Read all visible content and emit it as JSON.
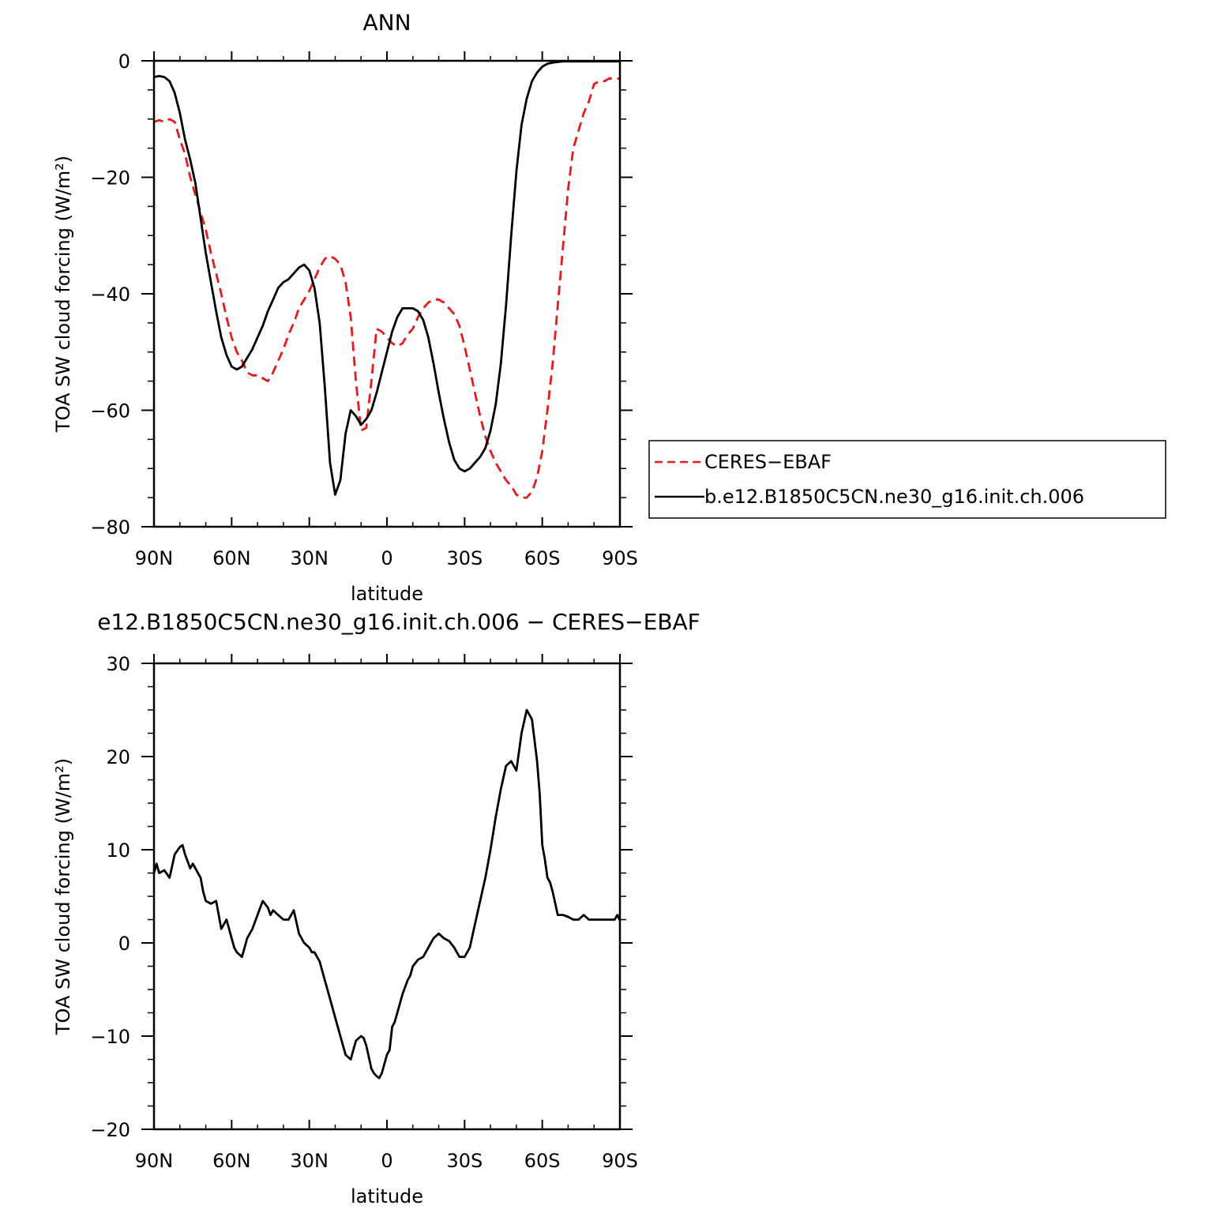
{
  "chart_data": [
    {
      "type": "line",
      "title": "ANN",
      "xlabel": "latitude",
      "ylabel": "TOA SW cloud forcing (W/m²)",
      "xlim": [
        90,
        -90
      ],
      "ylim": [
        -80,
        0
      ],
      "x_ticks": [
        90,
        60,
        30,
        0,
        -30,
        -60,
        -90
      ],
      "x_tick_labels": [
        "90N",
        "60N",
        "30N",
        "0",
        "30S",
        "60S",
        "90S"
      ],
      "y_ticks": [
        -80,
        -60,
        -40,
        -20,
        0
      ],
      "y_tick_labels": [
        "−80",
        "−60",
        "−40",
        "−20",
        "0"
      ],
      "legend": {
        "placement": "right",
        "entries": [
          {
            "label": "CERES−EBAF",
            "color": "#e41a1c",
            "style": "dashed"
          },
          {
            "label": "b.e12.B1850C5CN.ne30_g16.init.ch.006",
            "color": "#000000",
            "style": "solid"
          }
        ]
      },
      "series": [
        {
          "name": "CERES−EBAF",
          "color": "#e41a1c",
          "style": "dashed",
          "x": [
            90,
            88,
            86,
            84,
            82,
            80,
            78,
            76,
            74,
            72,
            70,
            68,
            66,
            64,
            62,
            60,
            58,
            56,
            54,
            52,
            50,
            48,
            46,
            44,
            42,
            40,
            38,
            36,
            34,
            32,
            30,
            28,
            26,
            24,
            22,
            20,
            18,
            16,
            14,
            12,
            10,
            8,
            6,
            4,
            2,
            0,
            -2,
            -4,
            -6,
            -8,
            -10,
            -12,
            -14,
            -16,
            -18,
            -20,
            -22,
            -24,
            -26,
            -28,
            -30,
            -32,
            -34,
            -36,
            -38,
            -40,
            -42,
            -44,
            -46,
            -48,
            -50,
            -52,
            -54,
            -56,
            -58,
            -60,
            -62,
            -64,
            -66,
            -68,
            -70,
            -72,
            -74,
            -76,
            -78,
            -80,
            -82,
            -84,
            -86,
            -88,
            -90
          ],
          "y": [
            -10.5,
            -10.2,
            -10.5,
            -10.0,
            -10.5,
            -13.5,
            -16.0,
            -20.0,
            -23.0,
            -26.0,
            -29.0,
            -33.0,
            -36.5,
            -40.0,
            -44.0,
            -47.5,
            -50.0,
            -51.5,
            -53.5,
            -54.0,
            -54.0,
            -54.5,
            -55.0,
            -53.5,
            -51.5,
            -49.5,
            -47.0,
            -45.0,
            -42.5,
            -41.0,
            -39.5,
            -37.5,
            -35.5,
            -34.0,
            -33.5,
            -34.0,
            -35.0,
            -38.0,
            -44.0,
            -55.0,
            -63.5,
            -63.0,
            -55.0,
            -46.0,
            -46.5,
            -47.5,
            -48.5,
            -49.0,
            -48.5,
            -47.0,
            -46.0,
            -44.0,
            -42.5,
            -41.5,
            -41.0,
            -41.0,
            -41.5,
            -42.5,
            -43.5,
            -45.5,
            -49.0,
            -53.0,
            -57.0,
            -61.0,
            -64.5,
            -67.0,
            -69.0,
            -70.5,
            -72.0,
            -73.0,
            -74.5,
            -75.0,
            -75.0,
            -74.0,
            -71.5,
            -67.0,
            -60.0,
            -52.0,
            -42.0,
            -32.0,
            -22.0,
            -15.0,
            -12.0,
            -9.0,
            -7.0,
            -4.0,
            -3.5,
            -3.5,
            -3.0,
            -3.2,
            -3.0
          ]
        },
        {
          "name": "b.e12.B1850C5CN.ne30_g16.init.ch.006",
          "color": "#000000",
          "style": "solid",
          "x": [
            90,
            88,
            86,
            84,
            82,
            80,
            78,
            76,
            74,
            72,
            70,
            68,
            66,
            64,
            62,
            60,
            58,
            56,
            54,
            52,
            50,
            48,
            46,
            44,
            42,
            40,
            38,
            36,
            34,
            32,
            30,
            28,
            26,
            24,
            22,
            20,
            18,
            16,
            14,
            12,
            10,
            8,
            6,
            4,
            2,
            0,
            -2,
            -4,
            -6,
            -8,
            -10,
            -12,
            -14,
            -16,
            -18,
            -20,
            -22,
            -24,
            -26,
            -28,
            -30,
            -32,
            -34,
            -36,
            -38,
            -40,
            -42,
            -44,
            -46,
            -48,
            -50,
            -52,
            -54,
            -56,
            -58,
            -60,
            -62,
            -64,
            -66,
            -68,
            -70,
            -72,
            -74,
            -76,
            -78,
            -80,
            -82,
            -84,
            -86,
            -88,
            -90
          ],
          "y": [
            -2.8,
            -2.6,
            -2.8,
            -3.5,
            -5.5,
            -9.0,
            -13.5,
            -17.0,
            -21.0,
            -27.0,
            -33.0,
            -38.0,
            -43.0,
            -47.5,
            -50.5,
            -52.5,
            -53.0,
            -52.5,
            -51.0,
            -49.5,
            -47.5,
            -45.5,
            -43.0,
            -41.0,
            -39.0,
            -38.0,
            -37.5,
            -36.5,
            -35.5,
            -35.0,
            -36.0,
            -39.0,
            -45.0,
            -56.0,
            -69.0,
            -74.5,
            -72.0,
            -64.0,
            -60.0,
            -61.0,
            -62.5,
            -61.5,
            -60.0,
            -57.0,
            -53.5,
            -50.0,
            -46.5,
            -44.0,
            -42.5,
            -42.5,
            -42.5,
            -43.0,
            -44.5,
            -47.5,
            -52.0,
            -57.0,
            -61.5,
            -65.5,
            -68.5,
            -70.0,
            -70.5,
            -70.0,
            -69.0,
            -68.0,
            -66.5,
            -63.5,
            -59.0,
            -52.0,
            -42.0,
            -30.0,
            -19.0,
            -11.0,
            -6.5,
            -3.5,
            -2.0,
            -1.0,
            -0.5,
            -0.3,
            -0.2,
            -0.1,
            -0.1,
            -0.1,
            -0.1,
            -0.1,
            -0.1,
            -0.1,
            -0.1,
            -0.1,
            -0.1,
            -0.1,
            -0.1
          ]
        }
      ]
    },
    {
      "type": "line",
      "title": "e12.B1850C5CN.ne30_g16.init.ch.006 − CERES−EBAF",
      "xlabel": "latitude",
      "ylabel": "TOA SW cloud forcing (W/m²)",
      "xlim": [
        90,
        -90
      ],
      "ylim": [
        -20,
        30
      ],
      "x_ticks": [
        90,
        60,
        30,
        0,
        -30,
        -60,
        -90
      ],
      "x_tick_labels": [
        "90N",
        "60N",
        "30N",
        "0",
        "30S",
        "60S",
        "90S"
      ],
      "y_ticks": [
        -20,
        -10,
        0,
        10,
        20,
        30
      ],
      "y_tick_labels": [
        "−20",
        "−10",
        "0",
        "10",
        "20",
        "30"
      ],
      "series": [
        {
          "color": "#000000",
          "style": "solid",
          "x": [
            90,
            89,
            88,
            86,
            84,
            82,
            80,
            79,
            78,
            76,
            75,
            74,
            72,
            71,
            70,
            68,
            66,
            64,
            62,
            61,
            60,
            59,
            58,
            56,
            54,
            52,
            50,
            48,
            46,
            45,
            44,
            42,
            40,
            38,
            36,
            34,
            32,
            30,
            29,
            28,
            26,
            24,
            22,
            20,
            18,
            16,
            14,
            12,
            10,
            9,
            8,
            6,
            5,
            4,
            3,
            2,
            1,
            0,
            -1,
            -2,
            -3,
            -4,
            -6,
            -8,
            -9,
            -10,
            -12,
            -14,
            -16,
            -18,
            -20,
            -22,
            -24,
            -26,
            -28,
            -30,
            -32,
            -34,
            -36,
            -38,
            -40,
            -42,
            -44,
            -46,
            -48,
            -50,
            -52,
            -54,
            -56,
            -58,
            -59,
            -60,
            -61,
            -62,
            -63,
            -64,
            -66,
            -68,
            -70,
            -72,
            -74,
            -76,
            -78,
            -80,
            -82,
            -84,
            -86,
            -88,
            -89,
            -90
          ],
          "y": [
            7.5,
            8.5,
            7.5,
            7.8,
            7.0,
            9.5,
            10.3,
            10.5,
            9.5,
            8.0,
            8.5,
            8.0,
            7.0,
            5.5,
            4.5,
            4.2,
            4.5,
            1.5,
            2.5,
            1.5,
            0.5,
            -0.5,
            -1.0,
            -1.5,
            0.5,
            1.5,
            3.0,
            4.5,
            3.8,
            3.0,
            3.5,
            3.0,
            2.5,
            2.5,
            3.5,
            1.0,
            0.0,
            -0.5,
            -1.0,
            -1.0,
            -2.0,
            -4.0,
            -6.0,
            -8.0,
            -10.0,
            -12.0,
            -12.5,
            -10.5,
            -10.0,
            -10.2,
            -11.0,
            -13.5,
            -14.0,
            -14.3,
            -14.5,
            -14.0,
            -13.0,
            -12.0,
            -11.5,
            -9.0,
            -8.5,
            -7.5,
            -5.5,
            -4.0,
            -3.5,
            -2.5,
            -1.8,
            -1.5,
            -0.5,
            0.5,
            1.0,
            0.5,
            0.2,
            -0.5,
            -1.5,
            -1.5,
            -0.5,
            2.0,
            4.5,
            7.0,
            10.0,
            13.5,
            16.5,
            19.0,
            19.5,
            18.5,
            22.5,
            25.0,
            24.0,
            19.5,
            16.0,
            10.5,
            9.0,
            7.0,
            6.5,
            5.5,
            3.0,
            3.0,
            2.8,
            2.5,
            2.5,
            3.0,
            2.5,
            2.5,
            2.5,
            2.5,
            2.5,
            2.5,
            3.0,
            2.4
          ]
        }
      ]
    }
  ]
}
